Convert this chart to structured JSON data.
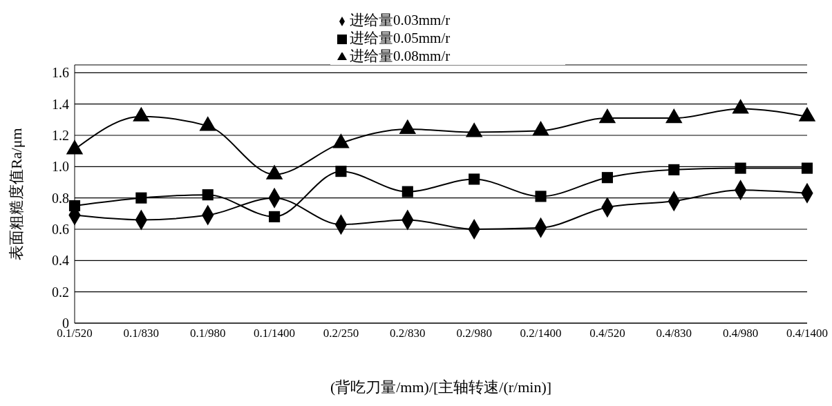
{
  "chart_data": {
    "type": "line",
    "xlabel": "(背吃刀量/mm)/[主轴转速/(r/min)]",
    "ylabel": "表面粗糙度值Ra/μm",
    "categories": [
      "0.1/520",
      "0.1/830",
      "0.1/980",
      "0.1/1400",
      "0.2/250",
      "0.2/830",
      "0.2/980",
      "0.2/1400",
      "0.4/520",
      "0.4/830",
      "0.4/980",
      "0.4/1400"
    ],
    "series": [
      {
        "name": "进给量0.03mm/r",
        "color": "#000000",
        "marker": "diamond",
        "values": [
          0.69,
          0.66,
          0.69,
          0.8,
          0.63,
          0.66,
          0.6,
          0.61,
          0.74,
          0.78,
          0.85,
          0.83
        ]
      },
      {
        "name": "进给量0.05mm/r",
        "color": "#000000",
        "marker": "square",
        "values": [
          0.75,
          0.8,
          0.82,
          0.68,
          0.97,
          0.84,
          0.92,
          0.81,
          0.93,
          0.98,
          0.99,
          0.99
        ]
      },
      {
        "name": "进给量0.08mm/r",
        "color": "#000000",
        "marker": "triangle",
        "values": [
          1.11,
          1.32,
          1.26,
          0.95,
          1.15,
          1.24,
          1.22,
          1.23,
          1.31,
          1.31,
          1.37,
          1.32
        ]
      }
    ],
    "ylim": [
      0,
      1.65
    ],
    "yticks": [
      0,
      0.2,
      0.4,
      0.6,
      0.8,
      {
        "value": 1,
        "label": "1.0"
      },
      1.2,
      1.4,
      1.6
    ],
    "grid": "y",
    "legend": "top",
    "line_style": "solid"
  }
}
